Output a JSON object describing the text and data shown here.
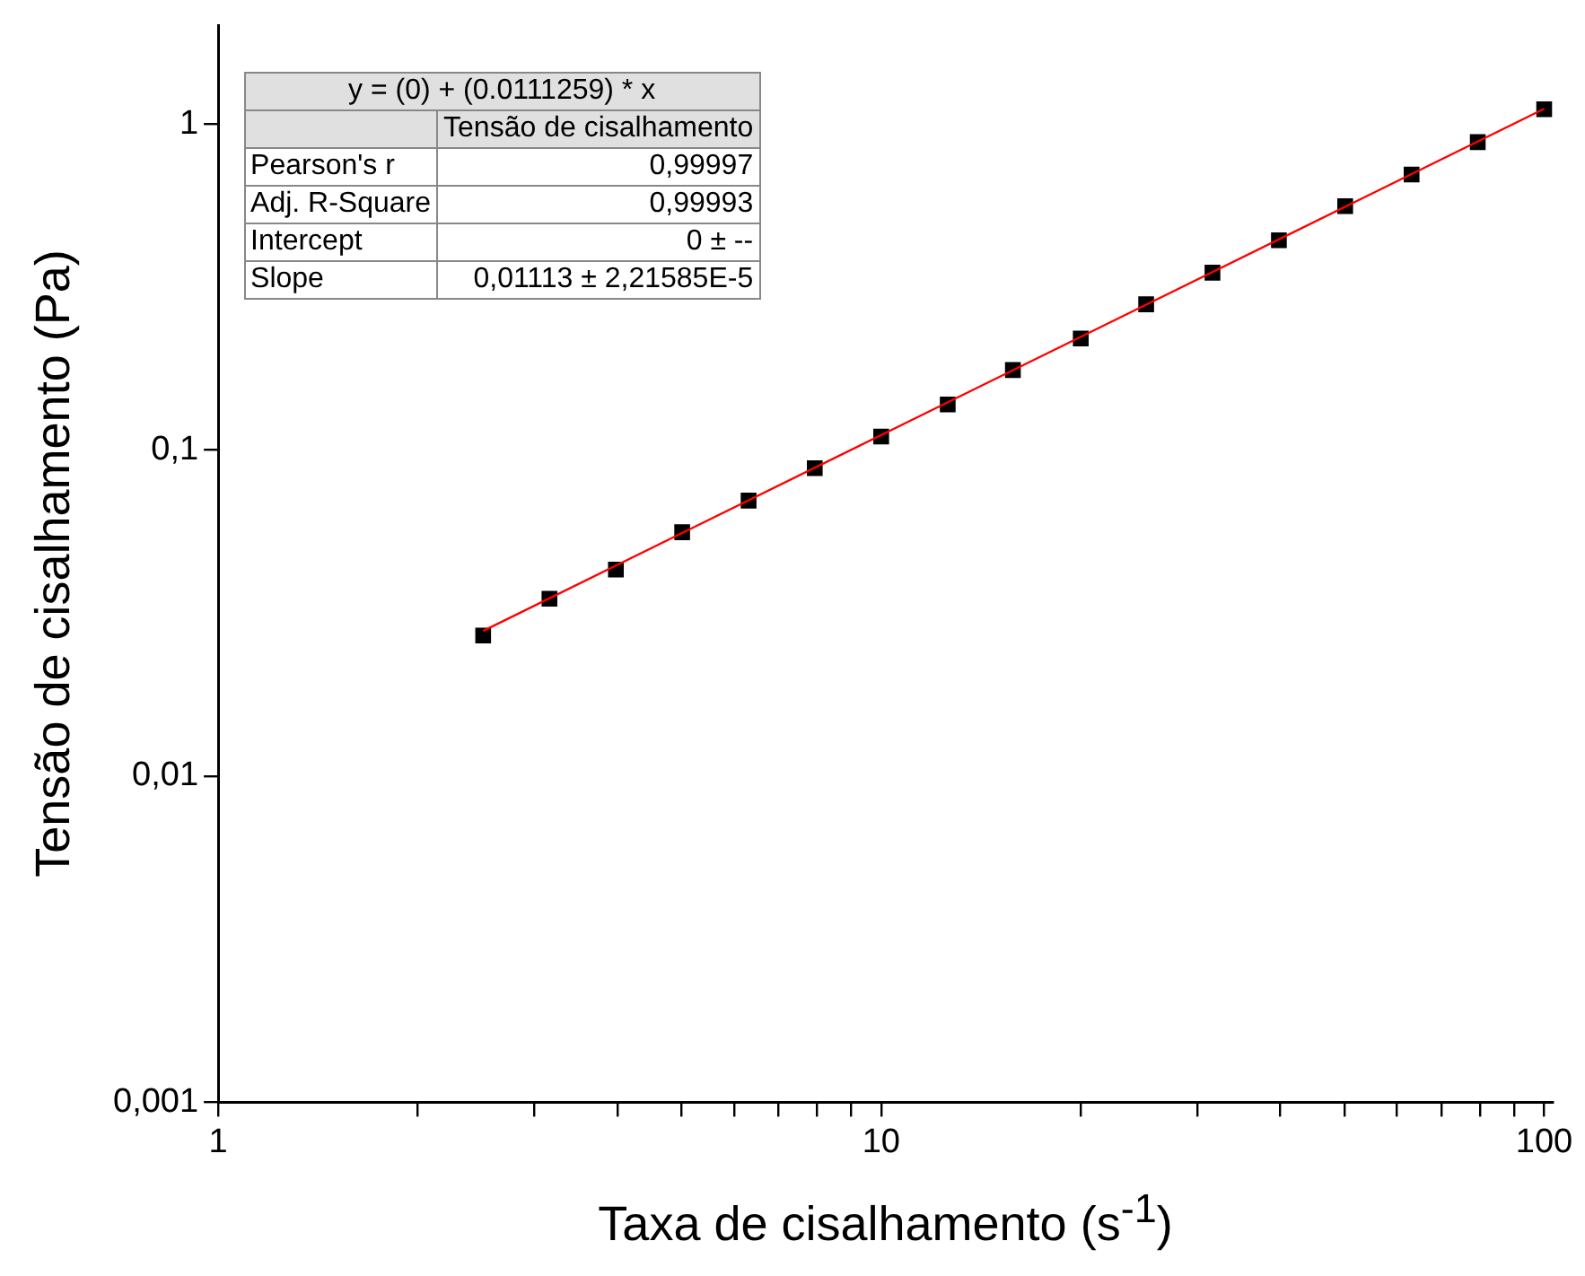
{
  "chart_data": {
    "type": "scatter",
    "xlabel": "Taxa de cisalhamento (s$^{-1}$)",
    "ylabel": "Tensão de cisalhamento (Pa)",
    "log": "xy",
    "grid": false,
    "legend": false,
    "marker": "square",
    "xlim": [
      1,
      103
    ],
    "ylim": [
      0.001,
      2
    ],
    "xticks": [
      1,
      {
        "value": 2,
        "label": null
      },
      {
        "value": 3,
        "label": null
      },
      {
        "value": 4,
        "label": null
      },
      {
        "value": 5,
        "label": null
      },
      {
        "value": 6,
        "label": null
      },
      {
        "value": 7,
        "label": null
      },
      {
        "value": 8,
        "label": null
      },
      {
        "value": 9,
        "label": null
      },
      10,
      {
        "value": 20,
        "label": null
      },
      {
        "value": 30,
        "label": null
      },
      {
        "value": 40,
        "label": null
      },
      {
        "value": 50,
        "label": null
      },
      {
        "value": 60,
        "label": null
      },
      {
        "value": 70,
        "label": null
      },
      {
        "value": 80,
        "label": null
      },
      {
        "value": 90,
        "label": null
      },
      100
    ],
    "yticks": [
      {
        "value": 0.001,
        "label": "0,001"
      },
      {
        "value": 0.01,
        "label": "0,01"
      },
      {
        "value": 0.1,
        "label": "0,1"
      },
      1
    ],
    "annotations": [
      "y = (0) + (0.0111259) * x",
      "Tensão de cisalhamento",
      "Pearson's r",
      "0,99997",
      "Adj. R-Square",
      "0,99993",
      "Intercept",
      "0 ± --",
      "Slope",
      "0,01113 ± 2,21585E-5"
    ],
    "series": [
      {
        "type": "line",
        "line_style": "solid",
        "marker": "none",
        "color": "#ff0000",
        "x": [
          2.51,
          100
        ],
        "values": [
          0.0279,
          1.113
        ]
      },
      {
        "color": "#000000",
        "x": [
          2.51,
          3.16,
          3.98,
          5.01,
          6.31,
          7.94,
          10,
          12.6,
          15.8,
          20,
          25.1,
          31.6,
          39.8,
          50.1,
          63.1,
          79.4,
          100
        ],
        "values": [
          0.027,
          0.035,
          0.043,
          0.056,
          0.07,
          0.088,
          0.11,
          0.138,
          0.176,
          0.22,
          0.28,
          0.35,
          0.44,
          0.56,
          0.7,
          0.88,
          1.11
        ]
      }
    ]
  }
}
